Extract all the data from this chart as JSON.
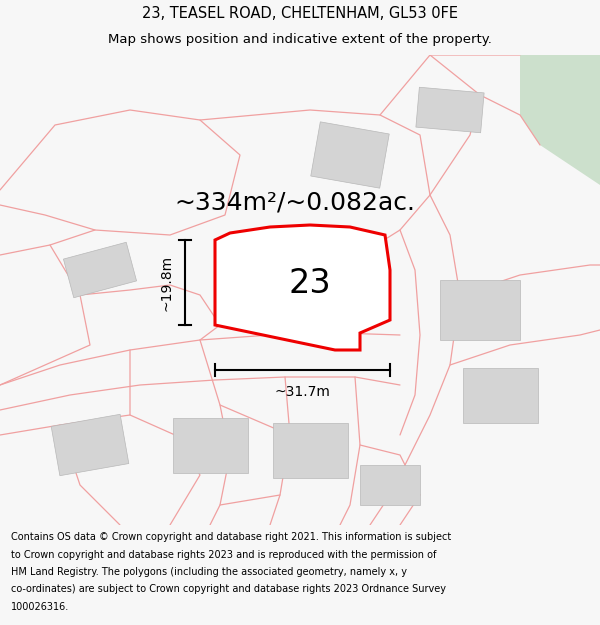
{
  "title_line1": "23, TEASEL ROAD, CHELTENHAM, GL53 0FE",
  "title_line2": "Map shows position and indicative extent of the property.",
  "footer_lines": [
    "Contains OS data © Crown copyright and database right 2021. This information is subject",
    "to Crown copyright and database rights 2023 and is reproduced with the permission of",
    "HM Land Registry. The polygons (including the associated geometry, namely x, y",
    "co-ordinates) are subject to Crown copyright and database rights 2023 Ordnance Survey",
    "100026316."
  ],
  "area_label": "~334m²/~0.082ac.",
  "number_label": "23",
  "width_label": "~31.7m",
  "height_label": "~19.8m",
  "bg_color": "#f7f7f7",
  "map_bg": "#ffffff",
  "parcel_color": "#f0a0a0",
  "building_color": "#d4d4d4",
  "building_edge": "#b8b8b8",
  "plot_color": "#ee0000",
  "plot_fill": "#ffffff",
  "green_area_color": "#cce0cc",
  "title_fontsize": 10.5,
  "subtitle_fontsize": 9.5,
  "area_fontsize": 18,
  "number_fontsize": 24,
  "dim_fontsize": 10,
  "footer_fontsize": 7.0
}
